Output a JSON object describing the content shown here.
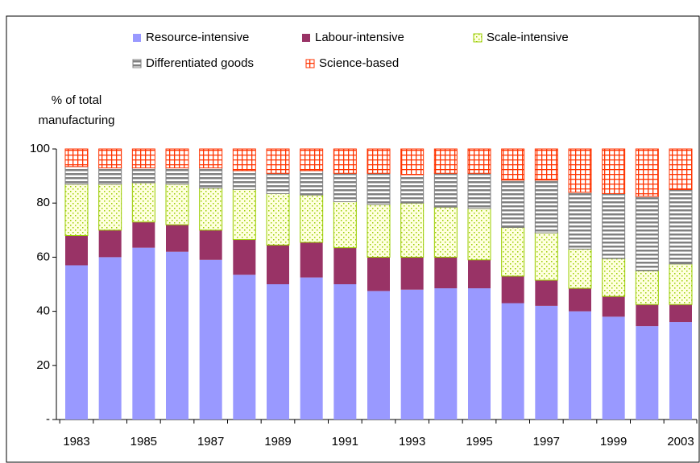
{
  "chart_data": {
    "type": "stacked_bar",
    "ylabel": [
      "% of total",
      "manufacturing"
    ],
    "categories": [
      "1983",
      null,
      "1985",
      null,
      "1987",
      null,
      "1989",
      null,
      "1991",
      null,
      "1993",
      null,
      "1995",
      null,
      "1997",
      null,
      "1999",
      null,
      "2003"
    ],
    "series": [
      {
        "name": "Resource-intensive",
        "color": "#9999ff",
        "pattern": "solid",
        "values": [
          57,
          60,
          63.5,
          62,
          59,
          53.5,
          50,
          52.5,
          50,
          47.5,
          48,
          48.5,
          48.5,
          43,
          42,
          40,
          38,
          34.5,
          36
        ]
      },
      {
        "name": "Labour-intensive",
        "color": "#993366",
        "pattern": "solid",
        "values": [
          11,
          10,
          9.5,
          10,
          11,
          13,
          14.5,
          13,
          13.5,
          12.5,
          12,
          11.5,
          10.5,
          10,
          9.5,
          8.5,
          7.5,
          8,
          6.5
        ]
      },
      {
        "name": "Scale-intensive",
        "color": "#99cc00",
        "pattern": "dots",
        "values": [
          19,
          17,
          14.5,
          15,
          15.5,
          18.5,
          19,
          17.5,
          17,
          19.5,
          20,
          18.5,
          19,
          18,
          17.5,
          14.5,
          14,
          12.5,
          15
        ]
      },
      {
        "name": "Differentiated goods",
        "color": "#808080",
        "pattern": "stripes",
        "values": [
          6.5,
          6,
          5.5,
          6,
          7.5,
          7,
          7.5,
          9,
          10.5,
          11.5,
          10.5,
          12.5,
          13,
          17.5,
          19.5,
          21,
          24,
          27.5,
          27.5
        ]
      },
      {
        "name": "Science-based",
        "color": "#ff3300",
        "pattern": "grid",
        "values": [
          6.5,
          7,
          7,
          7,
          7,
          8,
          9,
          8,
          9,
          9,
          9.5,
          9,
          9,
          11.5,
          11.5,
          16,
          16.5,
          17.5,
          15
        ]
      }
    ],
    "ylim": [
      0,
      100
    ],
    "yticks": [
      {
        "value": 0,
        "label": "-"
      },
      20,
      40,
      60,
      80,
      100
    ],
    "grid": false
  }
}
